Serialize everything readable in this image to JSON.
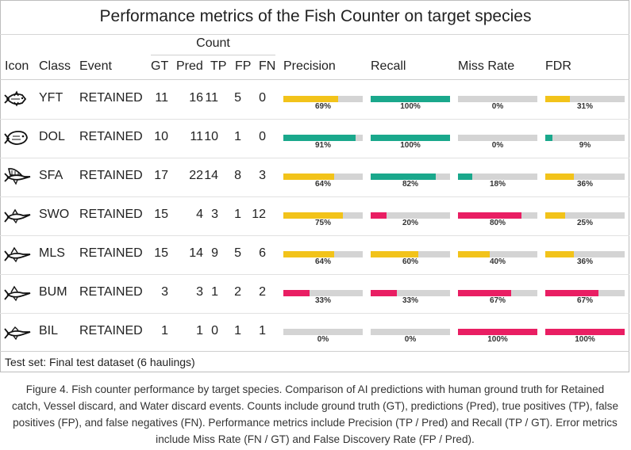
{
  "title": "Performance metrics of the Fish Counter on target species",
  "count_group_label": "Count",
  "headers": {
    "icon": "Icon",
    "class": "Class",
    "event": "Event",
    "gt": "GT",
    "pred": "Pred",
    "tp": "TP",
    "fp": "FP",
    "fn": "FN",
    "precision": "Precision",
    "recall": "Recall",
    "miss_rate": "Miss Rate",
    "fdr": "FDR"
  },
  "colors": {
    "good": "#1aa88c",
    "medium": "#f2c31a",
    "bad": "#e91e63",
    "track": "#d4d4d4"
  },
  "rows": [
    {
      "icon": "tuna-icon",
      "class": "YFT",
      "event": "RETAINED",
      "gt": "11",
      "pred": "16",
      "tp": "11",
      "fp": "5",
      "fn": "0",
      "precision": 0.69,
      "precision_label": "69%",
      "recall": 1.0,
      "recall_label": "100%",
      "miss_rate": 0.0,
      "miss_rate_label": "0%",
      "fdr": 0.31,
      "fdr_label": "31%"
    },
    {
      "icon": "dolphinfish-icon",
      "class": "DOL",
      "event": "RETAINED",
      "gt": "10",
      "pred": "11",
      "tp": "10",
      "fp": "1",
      "fn": "0",
      "precision": 0.91,
      "precision_label": "91%",
      "recall": 1.0,
      "recall_label": "100%",
      "miss_rate": 0.0,
      "miss_rate_label": "0%",
      "fdr": 0.09,
      "fdr_label": "9%"
    },
    {
      "icon": "sailfish-icon",
      "class": "SFA",
      "event": "RETAINED",
      "gt": "17",
      "pred": "22",
      "tp": "14",
      "fp": "8",
      "fn": "3",
      "precision": 0.64,
      "precision_label": "64%",
      "recall": 0.82,
      "recall_label": "82%",
      "miss_rate": 0.18,
      "miss_rate_label": "18%",
      "fdr": 0.36,
      "fdr_label": "36%"
    },
    {
      "icon": "swordfish-icon",
      "class": "SWO",
      "event": "RETAINED",
      "gt": "15",
      "pred": "4",
      "tp": "3",
      "fp": "1",
      "fn": "12",
      "precision": 0.75,
      "precision_label": "75%",
      "recall": 0.2,
      "recall_label": "20%",
      "miss_rate": 0.8,
      "miss_rate_label": "80%",
      "fdr": 0.25,
      "fdr_label": "25%"
    },
    {
      "icon": "marlin-icon",
      "class": "MLS",
      "event": "RETAINED",
      "gt": "15",
      "pred": "14",
      "tp": "9",
      "fp": "5",
      "fn": "6",
      "precision": 0.64,
      "precision_label": "64%",
      "recall": 0.6,
      "recall_label": "60%",
      "miss_rate": 0.4,
      "miss_rate_label": "40%",
      "fdr": 0.36,
      "fdr_label": "36%"
    },
    {
      "icon": "marlin-icon",
      "class": "BUM",
      "event": "RETAINED",
      "gt": "3",
      "pred": "3",
      "tp": "1",
      "fp": "2",
      "fn": "2",
      "precision": 0.33,
      "precision_label": "33%",
      "recall": 0.33,
      "recall_label": "33%",
      "miss_rate": 0.67,
      "miss_rate_label": "67%",
      "fdr": 0.67,
      "fdr_label": "67%"
    },
    {
      "icon": "billfish-icon",
      "class": "BIL",
      "event": "RETAINED",
      "gt": "1",
      "pred": "1",
      "tp": "0",
      "fp": "1",
      "fn": "1",
      "precision": 0.0,
      "precision_label": "0%",
      "recall": 0.0,
      "recall_label": "0%",
      "miss_rate": 1.0,
      "miss_rate_label": "100%",
      "fdr": 1.0,
      "fdr_label": "100%"
    }
  ],
  "test_set": "Test set: Final test dataset (6 haulings)",
  "caption": "Figure 4. Fish counter performance by target species. Comparison of AI predictions with human ground truth for Retained catch, Vessel discard, and Water discard events. Counts include ground truth (GT), predictions (Pred), true positives (TP), false positives (FP), and false negatives (FN). Performance metrics include Precision (TP / Pred) and Recall (TP / GT). Error metrics include Miss Rate (FN / GT) and False Discovery Rate (FP / Pred)."
}
